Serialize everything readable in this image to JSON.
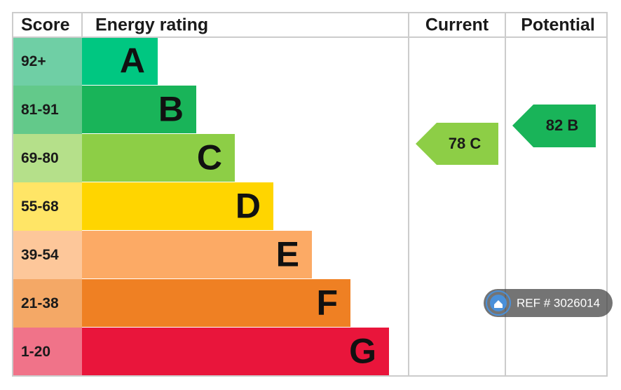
{
  "header": {
    "score": "Score",
    "energy_rating": "Energy rating",
    "current": "Current",
    "potential": "Potential"
  },
  "rows": [
    {
      "score": "92+",
      "letter": "A",
      "color": "#00c781",
      "score_color": "#6fcfa5"
    },
    {
      "score": "81-91",
      "letter": "B",
      "color": "#19b459",
      "score_color": "#63c98a"
    },
    {
      "score": "69-80",
      "letter": "C",
      "color": "#8dce46",
      "score_color": "#b5e08a"
    },
    {
      "score": "55-68",
      "letter": "D",
      "color": "#ffd500",
      "score_color": "#ffe566"
    },
    {
      "score": "39-54",
      "letter": "E",
      "color": "#fcaa65",
      "score_color": "#fdc79a"
    },
    {
      "score": "21-38",
      "letter": "F",
      "color": "#ef8023",
      "score_color": "#f4a866"
    },
    {
      "score": "1-20",
      "letter": "G",
      "color": "#e9153b",
      "score_color": "#f07389"
    }
  ],
  "current": {
    "label": "78 C",
    "color": "#8dce46"
  },
  "potential": {
    "label": "82 B",
    "color": "#19b459"
  },
  "watermark": "REF # 3026014"
}
